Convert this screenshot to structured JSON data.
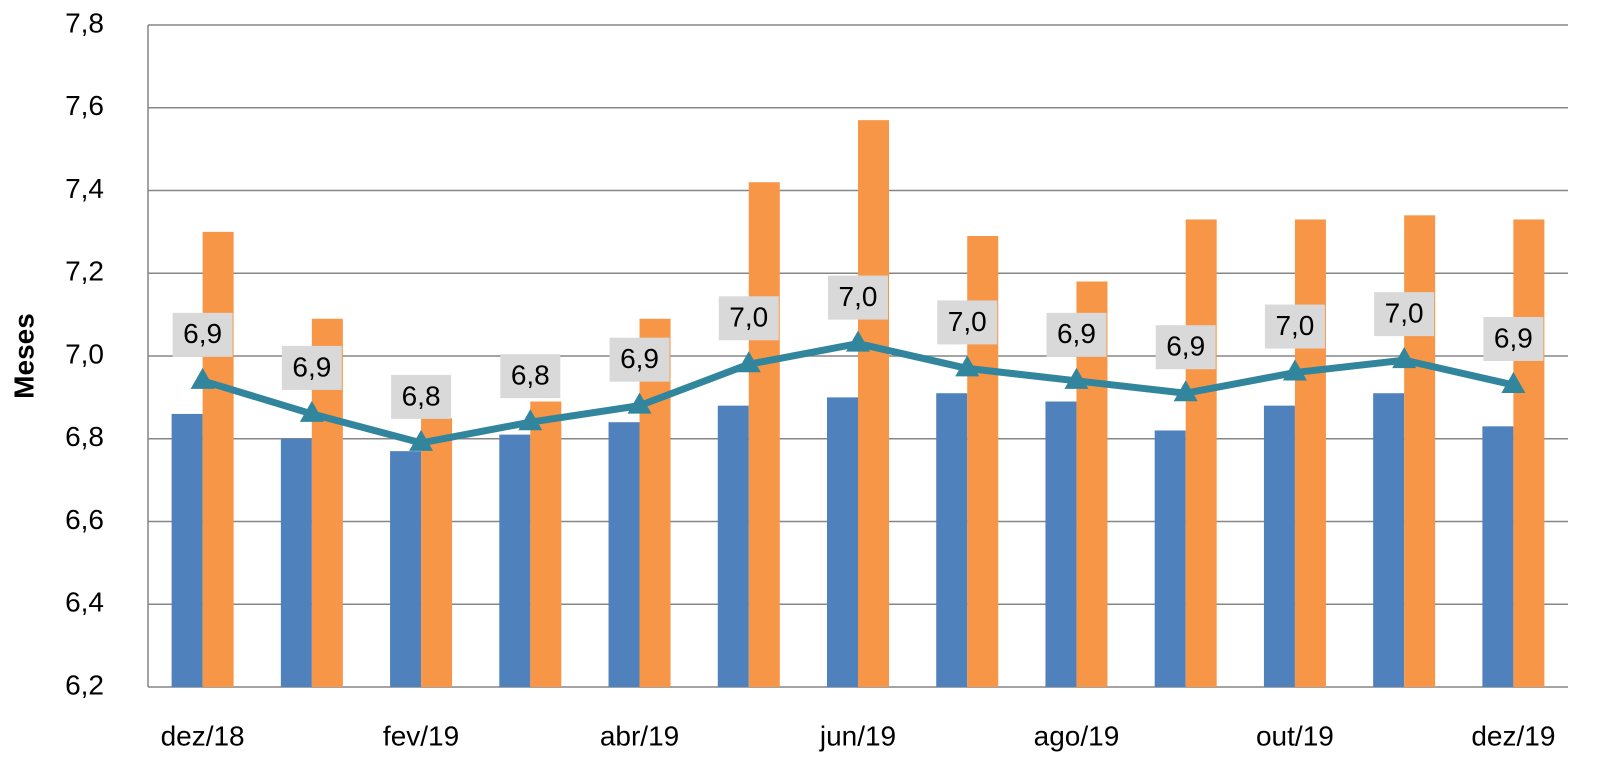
{
  "chart_data": {
    "type": "bar-line",
    "y_label": "Meses",
    "categories": [
      "dez/18",
      null,
      "fev/19",
      null,
      "abr/19",
      null,
      "jun/19",
      null,
      "ago/19",
      null,
      "out/19",
      null,
      "dez/19"
    ],
    "series": [
      {
        "type": "bar",
        "color": "#4f81bd",
        "values": [
          6.86,
          6.8,
          6.77,
          6.81,
          6.84,
          6.88,
          6.9,
          6.91,
          6.89,
          6.82,
          6.88,
          6.91,
          6.83
        ]
      },
      {
        "type": "bar",
        "color": "#f79646",
        "values": [
          7.3,
          7.09,
          6.85,
          6.89,
          7.09,
          7.42,
          7.57,
          7.29,
          7.18,
          7.33,
          7.33,
          7.34,
          7.33
        ]
      },
      {
        "type": "line",
        "color": "#31859c",
        "values": [
          6.94,
          6.86,
          6.79,
          6.84,
          6.88,
          6.98,
          7.03,
          6.97,
          6.94,
          6.91,
          6.96,
          6.99,
          6.93
        ],
        "value_labels": [
          "6,9",
          "6,9",
          "6,8",
          "6,8",
          "6,9",
          "7,0",
          "7,0",
          "7,0",
          "6,9",
          "6,9",
          "7,0",
          "7,0",
          "6,9"
        ]
      }
    ],
    "ylim": [
      6.2,
      7.8
    ],
    "yticks": [
      {
        "value": 6.2,
        "label": "6,2"
      },
      {
        "value": 6.4,
        "label": "6,4"
      },
      {
        "value": 6.6,
        "label": "6,6"
      },
      {
        "value": 6.8,
        "label": "6,8"
      },
      {
        "value": 7.0,
        "label": "7,0"
      },
      {
        "value": 7.2,
        "label": "7,2"
      },
      {
        "value": 7.4,
        "label": "7,4"
      },
      {
        "value": 7.6,
        "label": "7,6"
      },
      {
        "value": 7.8,
        "label": "7,8"
      }
    ],
    "grid": true
  }
}
